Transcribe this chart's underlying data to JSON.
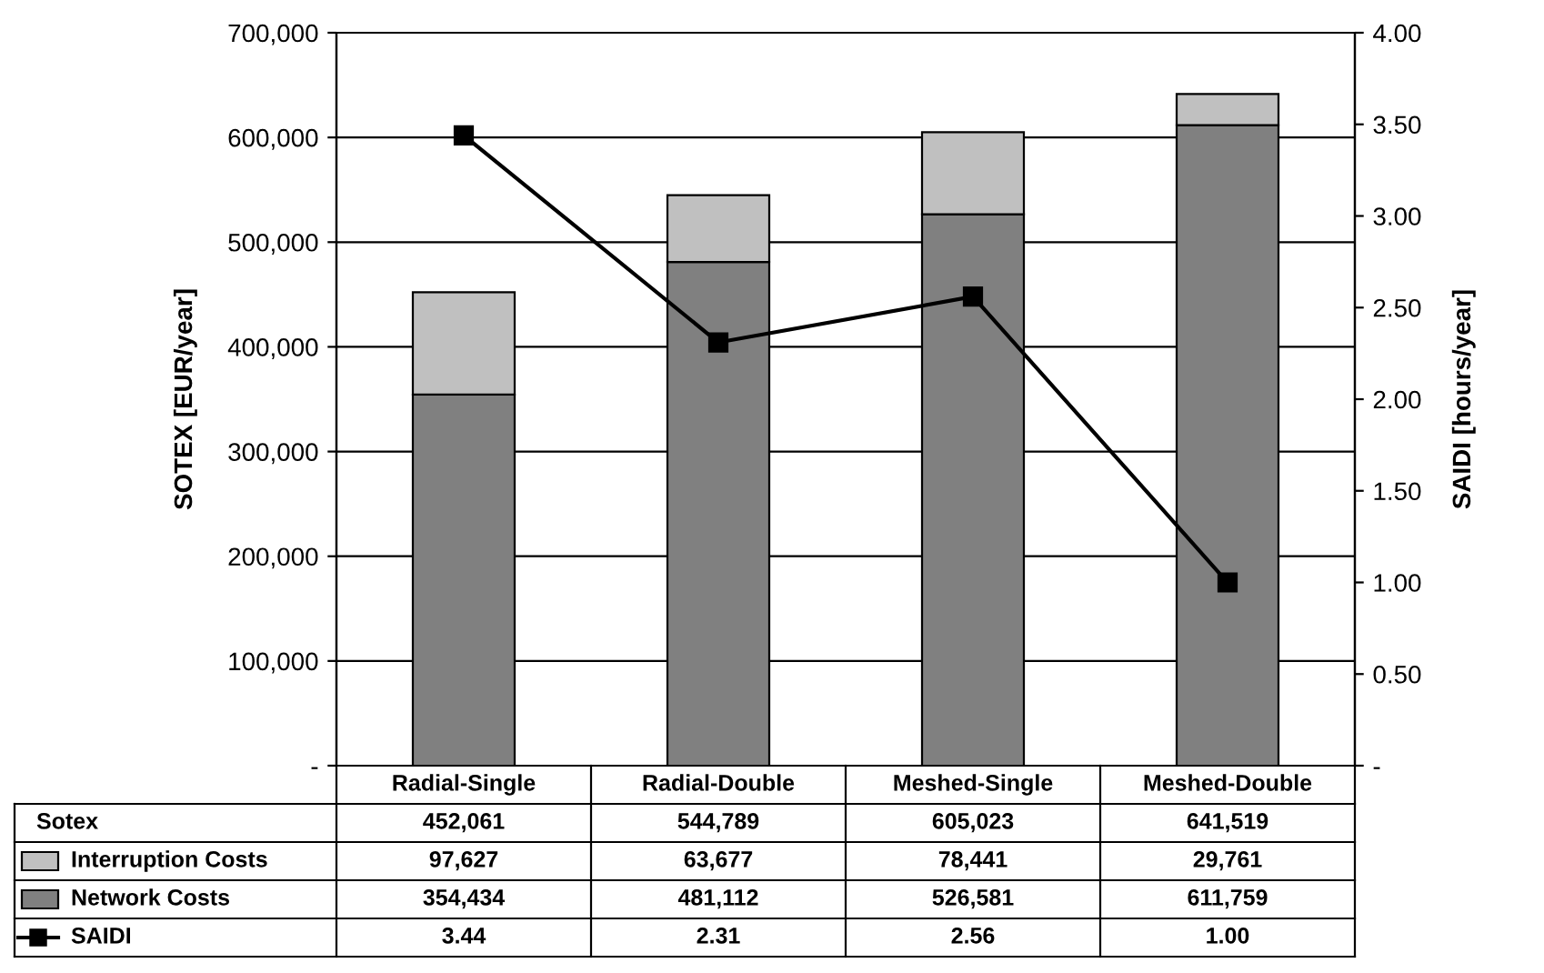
{
  "chart_data": {
    "type": "bar",
    "stacked": true,
    "ylabel": "SOTEX [EUR/year]",
    "y2label": "SAIDI [hours/year]",
    "categories": [
      "Radial-Single",
      "Radial-Double",
      "Meshed-Single",
      "Meshed-Double"
    ],
    "series": [
      {
        "name": "Network Costs",
        "color": "#808080",
        "values": [
          354434,
          481112,
          526581,
          611759
        ],
        "value_labels": [
          "354,434",
          "481,112",
          "526,581",
          "611,759"
        ]
      },
      {
        "name": "Interruption Costs",
        "color": "#c0c0c0",
        "values": [
          97627,
          63677,
          78441,
          29761
        ],
        "value_labels": [
          "97,627",
          "63,677",
          "78,441",
          "29,761"
        ]
      },
      {
        "name": "SAIDI",
        "type": "line",
        "axis": "y2",
        "color": "#000000",
        "marker": "square",
        "line_style": "solid",
        "values": [
          3.44,
          2.31,
          2.56,
          1.0
        ],
        "value_labels": [
          "3.44",
          "2.31",
          "2.56",
          "1.00"
        ]
      }
    ],
    "annotations": [
      "Sotex"
    ],
    "legend": "bottom left",
    "totals": [
      "452,061",
      "544,789",
      "605,023",
      "641,519"
    ],
    "ylim": [
      0,
      700000
    ],
    "yticks": [
      {
        "value": 0,
        "label": "-"
      },
      {
        "value": 100000,
        "label": "100,000"
      },
      {
        "value": 200000,
        "label": "200,000"
      },
      {
        "value": 300000,
        "label": "300,000"
      },
      {
        "value": 400000,
        "label": "400,000"
      },
      {
        "value": 500000,
        "label": "500,000"
      },
      {
        "value": 600000,
        "label": "600,000"
      },
      {
        "value": 700000,
        "label": "700,000"
      }
    ],
    "y2lim": [
      0,
      4
    ],
    "y2ticks": [
      {
        "value": 0,
        "label": "-"
      },
      {
        "value": 0.5,
        "label": "0.50"
      },
      {
        "value": 1,
        "label": "1.00"
      },
      {
        "value": 1.5,
        "label": "1.50"
      },
      {
        "value": 2,
        "label": "2.00"
      },
      {
        "value": 2.5,
        "label": "2.50"
      },
      {
        "value": 3,
        "label": "3.00"
      },
      {
        "value": 3.5,
        "label": "3.50"
      },
      {
        "value": 4,
        "label": "4.00"
      }
    ],
    "grid": "y"
  }
}
